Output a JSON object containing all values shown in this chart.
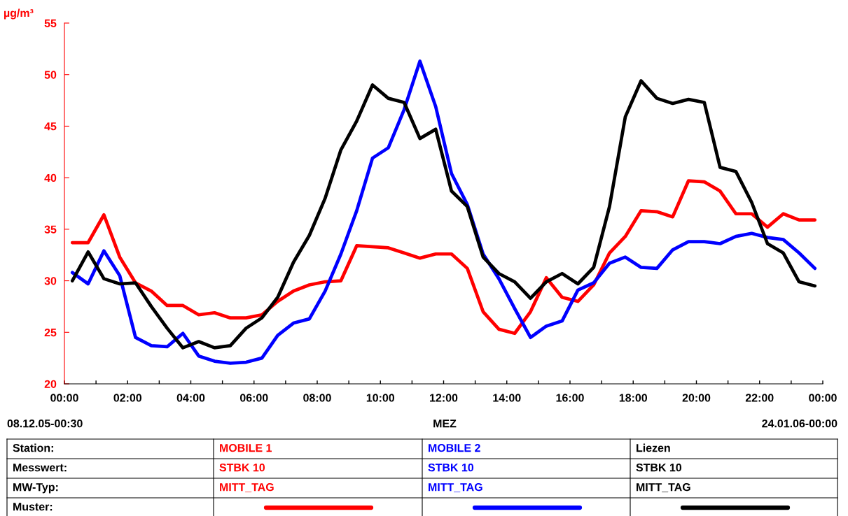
{
  "chart_data": {
    "type": "line",
    "ylabel": "µg/m³",
    "xlabel": "MEZ",
    "x": [
      0.25,
      0.75,
      1.25,
      1.75,
      2.25,
      2.75,
      3.25,
      3.75,
      4.25,
      4.75,
      5.25,
      5.75,
      6.25,
      6.75,
      7.25,
      7.75,
      8.25,
      8.75,
      9.25,
      9.75,
      10.25,
      10.75,
      11.25,
      11.75,
      12.25,
      12.75,
      13.25,
      13.75,
      14.25,
      14.75,
      15.25,
      15.75,
      16.25,
      16.75,
      17.25,
      17.75,
      18.25,
      18.75,
      19.25,
      19.75,
      20.25,
      20.75,
      21.25,
      21.75,
      22.25,
      22.75,
      23.25,
      23.75
    ],
    "series": [
      {
        "name": "MOBILE 1",
        "color": "#ff0000",
        "values": [
          33.7,
          33.7,
          36.4,
          32.3,
          29.8,
          29.0,
          27.6,
          27.6,
          26.7,
          26.9,
          26.4,
          26.4,
          26.7,
          28.0,
          29.0,
          29.6,
          29.9,
          30.0,
          33.4,
          33.3,
          33.2,
          32.7,
          32.2,
          32.6,
          32.6,
          31.2,
          27.0,
          25.3,
          24.9,
          27.0,
          30.3,
          28.4,
          28.0,
          29.6,
          32.7,
          34.3,
          36.8,
          36.7,
          36.2,
          39.7,
          39.6,
          38.7,
          36.5,
          36.5,
          35.2,
          36.5,
          35.9,
          35.9
        ]
      },
      {
        "name": "MOBILE 2",
        "color": "#0000ff",
        "values": [
          30.8,
          29.7,
          32.9,
          30.5,
          24.5,
          23.7,
          23.6,
          24.9,
          22.7,
          22.2,
          22.0,
          22.1,
          22.5,
          24.7,
          25.9,
          26.3,
          29.0,
          32.6,
          36.8,
          41.9,
          42.9,
          46.6,
          51.3,
          46.9,
          40.4,
          37.4,
          32.6,
          30.2,
          27.3,
          24.5,
          25.6,
          26.1,
          29.1,
          29.8,
          31.7,
          32.3,
          31.3,
          31.2,
          33.0,
          33.8,
          33.8,
          33.6,
          34.3,
          34.6,
          34.2,
          34.0,
          32.7,
          31.2
        ]
      },
      {
        "name": "Liezen",
        "color": "#000000",
        "values": [
          30.0,
          32.8,
          30.2,
          29.7,
          29.8,
          27.5,
          25.4,
          23.5,
          24.1,
          23.5,
          23.7,
          25.4,
          26.4,
          28.4,
          31.8,
          34.4,
          38.0,
          42.7,
          45.5,
          49.0,
          47.7,
          47.3,
          43.8,
          44.7,
          38.7,
          37.2,
          32.3,
          30.7,
          29.9,
          28.3,
          29.9,
          30.7,
          29.7,
          31.3,
          37.2,
          45.9,
          49.4,
          47.7,
          47.2,
          47.6,
          47.3,
          41.0,
          40.6,
          37.6,
          33.6,
          32.7,
          29.9,
          29.5
        ]
      }
    ],
    "xlim": [
      0,
      24
    ],
    "xticks": [
      {
        "value": 0,
        "label": "00:00"
      },
      {
        "value": 1,
        "label": null
      },
      {
        "value": 2,
        "label": "02:00"
      },
      {
        "value": 3,
        "label": null
      },
      {
        "value": 4,
        "label": "04:00"
      },
      {
        "value": 5,
        "label": null
      },
      {
        "value": 6,
        "label": "06:00"
      },
      {
        "value": 7,
        "label": null
      },
      {
        "value": 8,
        "label": "08:00"
      },
      {
        "value": 9,
        "label": null
      },
      {
        "value": 10,
        "label": "10:00"
      },
      {
        "value": 11,
        "label": null
      },
      {
        "value": 12,
        "label": "12:00"
      },
      {
        "value": 13,
        "label": null
      },
      {
        "value": 14,
        "label": "14:00"
      },
      {
        "value": 15,
        "label": null
      },
      {
        "value": 16,
        "label": "16:00"
      },
      {
        "value": 17,
        "label": null
      },
      {
        "value": 18,
        "label": "18:00"
      },
      {
        "value": 19,
        "label": null
      },
      {
        "value": 20,
        "label": "20:00"
      },
      {
        "value": 21,
        "label": null
      },
      {
        "value": 22,
        "label": "22:00"
      },
      {
        "value": 23,
        "label": null
      },
      {
        "value": 24,
        "label": "00:00"
      }
    ],
    "ylim": [
      20,
      55
    ],
    "yticks": [
      20,
      25,
      30,
      35,
      40,
      45,
      50,
      55
    ],
    "grid": false,
    "legend": "bottom",
    "marker": "none",
    "line_style": "solid",
    "annotations": [
      "08.12.05-00:30",
      "24.01.06-00:00",
      "Station:",
      "Messwert:",
      "MW-Typ:",
      "Muster:",
      "STBK 10",
      "MITT_TAG",
      "STBK 10",
      "MITT_TAG",
      "STBK 10",
      "MITT_TAG"
    ]
  }
}
